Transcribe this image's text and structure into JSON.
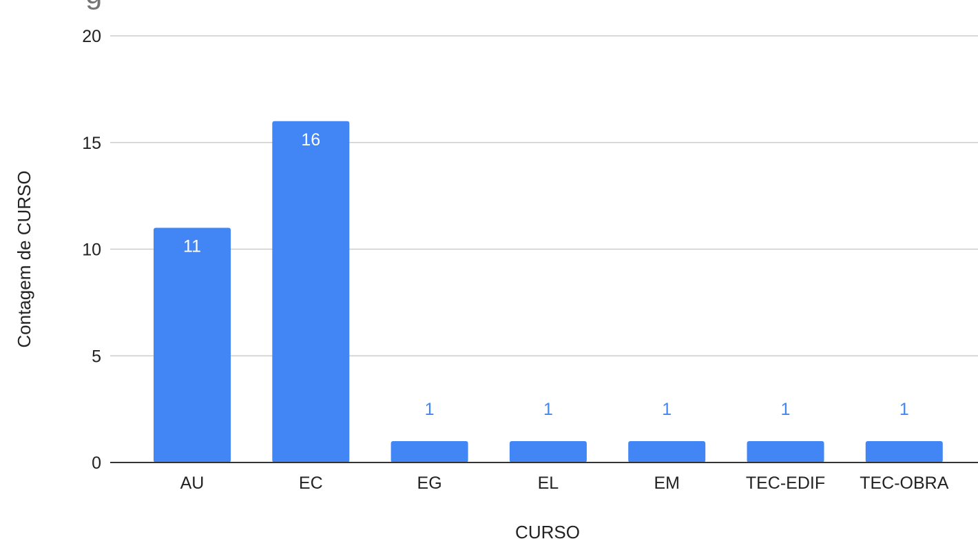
{
  "chart_data": {
    "type": "bar",
    "title": "",
    "title_fragment": "g",
    "xlabel": "CURSO",
    "ylabel": "Contagem de CURSO",
    "categories": [
      "AU",
      "EC",
      "EG",
      "EL",
      "EM",
      "TEC-EDIF",
      "TEC-OBRA"
    ],
    "values": [
      11,
      16,
      1,
      1,
      1,
      1,
      1
    ],
    "data_labels": [
      "11",
      "16",
      "1",
      "1",
      "1",
      "1",
      "1"
    ],
    "ylim": [
      0,
      20
    ],
    "yticks": [
      0,
      5,
      10,
      15,
      20
    ],
    "grid": true,
    "legend": "none",
    "colors": {
      "bar": "#4285f4",
      "label_inside": "#ffffff",
      "label_outside": "#4285f4",
      "gridline": "#cccccc",
      "baseline": "#333333"
    }
  }
}
